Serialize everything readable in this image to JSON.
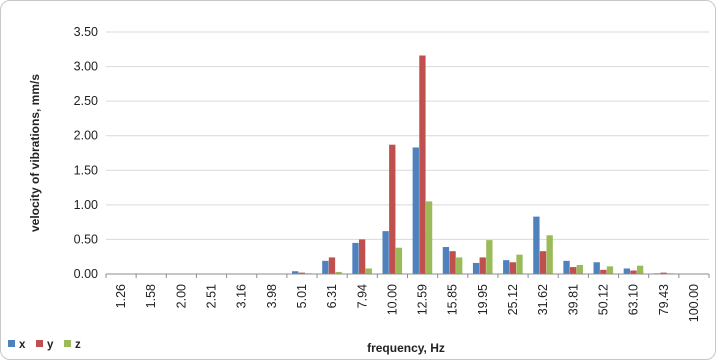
{
  "chart_data": {
    "type": "bar",
    "title": "",
    "xlabel": "frequency, Hz",
    "ylabel": "velocity of vibrations, mm/s",
    "ylim": [
      0,
      3.5
    ],
    "yticks": [
      "0.00",
      "0.50",
      "1.00",
      "1.50",
      "2.00",
      "2.50",
      "3.00",
      "3.50"
    ],
    "grid": true,
    "legend_position": "bottom-left",
    "categories": [
      "1.26",
      "1.58",
      "2.00",
      "2.51",
      "3.16",
      "3.98",
      "5.01",
      "6.31",
      "7.94",
      "10.00",
      "12.59",
      "15.85",
      "19.95",
      "25.12",
      "31.62",
      "39.81",
      "50.12",
      "63.10",
      "79.43",
      "100.00"
    ],
    "series": [
      {
        "name": "x",
        "color": "#4f81bd",
        "values": [
          0.0,
          0.0,
          0.0,
          0.0,
          0.0,
          0.0,
          0.04,
          0.19,
          0.45,
          0.62,
          1.83,
          0.39,
          0.16,
          0.2,
          0.83,
          0.19,
          0.17,
          0.08,
          0.01,
          0.0
        ]
      },
      {
        "name": "y",
        "color": "#c0504d",
        "values": [
          0.0,
          0.0,
          0.0,
          0.0,
          0.0,
          0.0,
          0.02,
          0.24,
          0.5,
          1.87,
          3.16,
          0.33,
          0.24,
          0.17,
          0.33,
          0.1,
          0.06,
          0.05,
          0.02,
          0.0
        ]
      },
      {
        "name": "z",
        "color": "#9bbb59",
        "values": [
          0.0,
          0.0,
          0.0,
          0.0,
          0.0,
          0.0,
          0.01,
          0.03,
          0.08,
          0.38,
          1.05,
          0.24,
          0.49,
          0.28,
          0.56,
          0.13,
          0.11,
          0.12,
          0.01,
          0.0
        ]
      }
    ]
  }
}
